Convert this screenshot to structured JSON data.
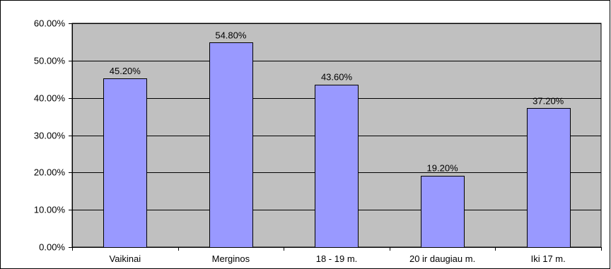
{
  "chart_data": {
    "type": "bar",
    "title": "",
    "xlabel": "",
    "ylabel": "",
    "categories": [
      "Vaikinai",
      "Merginos",
      "18 - 19 m.",
      "20 ir daugiau m.",
      "Iki 17 m."
    ],
    "values": [
      45.2,
      54.8,
      43.6,
      19.2,
      37.2
    ],
    "data_labels": [
      "45.20%",
      "54.80%",
      "43.60%",
      "19.20%",
      "37.20%"
    ],
    "ylim": [
      0,
      60
    ],
    "y_ticks": [
      0,
      10,
      20,
      30,
      40,
      50,
      60
    ],
    "y_tick_labels": [
      "0.00%",
      "10.00%",
      "20.00%",
      "30.00%",
      "40.00%",
      "50.00%",
      "60.00%"
    ],
    "grid": true,
    "legend": "none",
    "colors": {
      "bar_fill": "#9999ff",
      "bar_stroke": "#000000",
      "plot_background": "#c0c0c0",
      "gridline": "#000000",
      "frame": "#000000"
    }
  }
}
